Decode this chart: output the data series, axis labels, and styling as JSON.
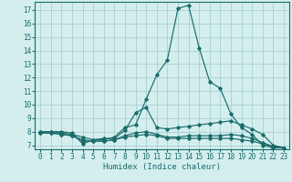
{
  "xlabel": "Humidex (Indice chaleur)",
  "background_color": "#d4eeee",
  "grid_color": "#aed4d4",
  "line_color": "#1a6b6b",
  "xlim": [
    -0.5,
    23.5
  ],
  "ylim": [
    6.7,
    17.6
  ],
  "yticks": [
    7,
    8,
    9,
    10,
    11,
    12,
    13,
    14,
    15,
    16,
    17
  ],
  "xticks": [
    0,
    1,
    2,
    3,
    4,
    5,
    6,
    7,
    8,
    9,
    10,
    11,
    12,
    13,
    14,
    15,
    16,
    17,
    18,
    19,
    20,
    21,
    22,
    23
  ],
  "curves": [
    {
      "x": [
        0,
        1,
        2,
        3,
        4,
        5,
        6,
        7,
        8,
        9,
        10,
        11,
        12,
        13,
        14,
        15,
        16,
        17,
        18,
        19,
        20,
        21,
        22,
        23
      ],
      "y": [
        8.0,
        8.0,
        8.0,
        7.9,
        7.1,
        7.4,
        7.4,
        7.6,
        8.3,
        8.5,
        10.4,
        12.2,
        13.3,
        17.1,
        17.35,
        14.2,
        11.7,
        11.2,
        9.3,
        8.3,
        7.8,
        7.0,
        6.8,
        6.8
      ]
    },
    {
      "x": [
        0,
        1,
        2,
        3,
        4,
        5,
        6,
        7,
        8,
        9,
        10,
        11,
        12,
        13,
        14,
        15,
        16,
        17,
        18,
        19,
        20,
        21,
        22,
        23
      ],
      "y": [
        8.0,
        8.0,
        7.9,
        7.8,
        7.6,
        7.4,
        7.5,
        7.5,
        8.1,
        9.4,
        9.8,
        8.3,
        8.2,
        8.3,
        8.4,
        8.5,
        8.6,
        8.7,
        8.8,
        8.5,
        8.2,
        7.8,
        7.0,
        6.8
      ]
    },
    {
      "x": [
        0,
        1,
        2,
        3,
        4,
        5,
        6,
        7,
        8,
        9,
        10,
        11,
        12,
        13,
        14,
        15,
        16,
        17,
        18,
        19,
        20,
        21,
        22,
        23
      ],
      "y": [
        7.9,
        7.9,
        7.8,
        7.7,
        7.4,
        7.3,
        7.3,
        7.4,
        7.7,
        7.9,
        8.0,
        7.8,
        7.6,
        7.6,
        7.7,
        7.7,
        7.7,
        7.7,
        7.8,
        7.7,
        7.5,
        7.2,
        6.9,
        6.8
      ]
    },
    {
      "x": [
        0,
        1,
        2,
        3,
        4,
        5,
        6,
        7,
        8,
        9,
        10,
        11,
        12,
        13,
        14,
        15,
        16,
        17,
        18,
        19,
        20,
        21,
        22,
        23
      ],
      "y": [
        7.9,
        7.9,
        7.8,
        7.7,
        7.3,
        7.3,
        7.3,
        7.4,
        7.6,
        7.7,
        7.8,
        7.7,
        7.5,
        7.5,
        7.5,
        7.5,
        7.5,
        7.5,
        7.5,
        7.4,
        7.3,
        7.1,
        6.9,
        6.8
      ]
    }
  ]
}
